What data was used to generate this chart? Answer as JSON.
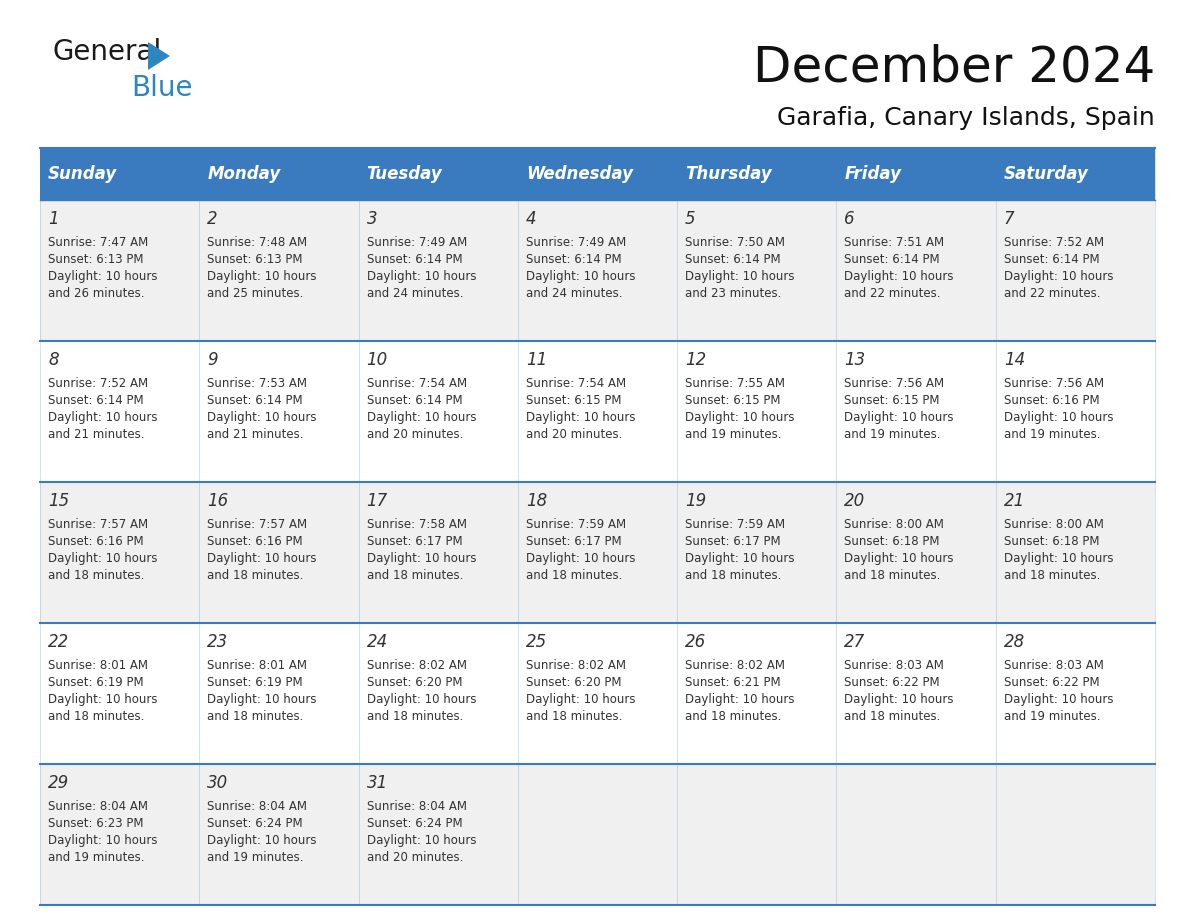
{
  "title": "December 2024",
  "subtitle": "Garafia, Canary Islands, Spain",
  "header_color": "#3a7bbf",
  "header_text_color": "#ffffff",
  "cell_bg_color": "#ffffff",
  "alt_cell_bg_color": "#f0f0f0",
  "border_color": "#3a7bbf",
  "text_color": "#333333",
  "days_of_week": [
    "Sunday",
    "Monday",
    "Tuesday",
    "Wednesday",
    "Thursday",
    "Friday",
    "Saturday"
  ],
  "calendar_data": [
    [
      {
        "day": 1,
        "sunrise": "7:47 AM",
        "sunset": "6:13 PM",
        "daylight": "10 hours and 26 minutes."
      },
      {
        "day": 2,
        "sunrise": "7:48 AM",
        "sunset": "6:13 PM",
        "daylight": "10 hours and 25 minutes."
      },
      {
        "day": 3,
        "sunrise": "7:49 AM",
        "sunset": "6:14 PM",
        "daylight": "10 hours and 24 minutes."
      },
      {
        "day": 4,
        "sunrise": "7:49 AM",
        "sunset": "6:14 PM",
        "daylight": "10 hours and 24 minutes."
      },
      {
        "day": 5,
        "sunrise": "7:50 AM",
        "sunset": "6:14 PM",
        "daylight": "10 hours and 23 minutes."
      },
      {
        "day": 6,
        "sunrise": "7:51 AM",
        "sunset": "6:14 PM",
        "daylight": "10 hours and 22 minutes."
      },
      {
        "day": 7,
        "sunrise": "7:52 AM",
        "sunset": "6:14 PM",
        "daylight": "10 hours and 22 minutes."
      }
    ],
    [
      {
        "day": 8,
        "sunrise": "7:52 AM",
        "sunset": "6:14 PM",
        "daylight": "10 hours and 21 minutes."
      },
      {
        "day": 9,
        "sunrise": "7:53 AM",
        "sunset": "6:14 PM",
        "daylight": "10 hours and 21 minutes."
      },
      {
        "day": 10,
        "sunrise": "7:54 AM",
        "sunset": "6:14 PM",
        "daylight": "10 hours and 20 minutes."
      },
      {
        "day": 11,
        "sunrise": "7:54 AM",
        "sunset": "6:15 PM",
        "daylight": "10 hours and 20 minutes."
      },
      {
        "day": 12,
        "sunrise": "7:55 AM",
        "sunset": "6:15 PM",
        "daylight": "10 hours and 19 minutes."
      },
      {
        "day": 13,
        "sunrise": "7:56 AM",
        "sunset": "6:15 PM",
        "daylight": "10 hours and 19 minutes."
      },
      {
        "day": 14,
        "sunrise": "7:56 AM",
        "sunset": "6:16 PM",
        "daylight": "10 hours and 19 minutes."
      }
    ],
    [
      {
        "day": 15,
        "sunrise": "7:57 AM",
        "sunset": "6:16 PM",
        "daylight": "10 hours and 18 minutes."
      },
      {
        "day": 16,
        "sunrise": "7:57 AM",
        "sunset": "6:16 PM",
        "daylight": "10 hours and 18 minutes."
      },
      {
        "day": 17,
        "sunrise": "7:58 AM",
        "sunset": "6:17 PM",
        "daylight": "10 hours and 18 minutes."
      },
      {
        "day": 18,
        "sunrise": "7:59 AM",
        "sunset": "6:17 PM",
        "daylight": "10 hours and 18 minutes."
      },
      {
        "day": 19,
        "sunrise": "7:59 AM",
        "sunset": "6:17 PM",
        "daylight": "10 hours and 18 minutes."
      },
      {
        "day": 20,
        "sunrise": "8:00 AM",
        "sunset": "6:18 PM",
        "daylight": "10 hours and 18 minutes."
      },
      {
        "day": 21,
        "sunrise": "8:00 AM",
        "sunset": "6:18 PM",
        "daylight": "10 hours and 18 minutes."
      }
    ],
    [
      {
        "day": 22,
        "sunrise": "8:01 AM",
        "sunset": "6:19 PM",
        "daylight": "10 hours and 18 minutes."
      },
      {
        "day": 23,
        "sunrise": "8:01 AM",
        "sunset": "6:19 PM",
        "daylight": "10 hours and 18 minutes."
      },
      {
        "day": 24,
        "sunrise": "8:02 AM",
        "sunset": "6:20 PM",
        "daylight": "10 hours and 18 minutes."
      },
      {
        "day": 25,
        "sunrise": "8:02 AM",
        "sunset": "6:20 PM",
        "daylight": "10 hours and 18 minutes."
      },
      {
        "day": 26,
        "sunrise": "8:02 AM",
        "sunset": "6:21 PM",
        "daylight": "10 hours and 18 minutes."
      },
      {
        "day": 27,
        "sunrise": "8:03 AM",
        "sunset": "6:22 PM",
        "daylight": "10 hours and 18 minutes."
      },
      {
        "day": 28,
        "sunrise": "8:03 AM",
        "sunset": "6:22 PM",
        "daylight": "10 hours and 19 minutes."
      }
    ],
    [
      {
        "day": 29,
        "sunrise": "8:04 AM",
        "sunset": "6:23 PM",
        "daylight": "10 hours and 19 minutes."
      },
      {
        "day": 30,
        "sunrise": "8:04 AM",
        "sunset": "6:24 PM",
        "daylight": "10 hours and 19 minutes."
      },
      {
        "day": 31,
        "sunrise": "8:04 AM",
        "sunset": "6:24 PM",
        "daylight": "10 hours and 20 minutes."
      },
      null,
      null,
      null,
      null
    ]
  ],
  "logo_general_color": "#1a1a1a",
  "logo_blue_color": "#2e86c1",
  "logo_triangle_color": "#2e86c1",
  "title_fontsize": 36,
  "subtitle_fontsize": 18,
  "header_fontsize": 12,
  "day_num_fontsize": 12,
  "cell_text_fontsize": 8.5
}
